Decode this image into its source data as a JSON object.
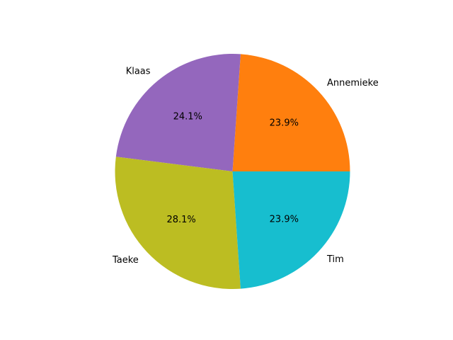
{
  "chart_data": {
    "type": "pie",
    "title": "",
    "slices": [
      {
        "label": "Annemieke",
        "value": 23.9,
        "pct_label": "23.9%",
        "color": "#ff7f0e"
      },
      {
        "label": "Klaas",
        "value": 24.1,
        "pct_label": "24.1%",
        "color": "#9467bd"
      },
      {
        "label": "Taeke",
        "value": 28.1,
        "pct_label": "28.1%",
        "color": "#bcbd22"
      },
      {
        "label": "Tim",
        "value": 23.9,
        "pct_label": "23.9%",
        "color": "#17becf"
      }
    ],
    "start_angle_deg": 0,
    "direction": "counterclockwise",
    "legend": "none",
    "grid": false
  }
}
